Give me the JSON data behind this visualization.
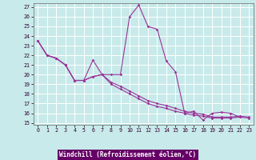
{
  "xlabel": "Windchill (Refroidissement éolien,°C)",
  "background_color": "#c8eaea",
  "grid_color": "#ffffff",
  "line_color": "#993399",
  "xlabel_bg": "#660066",
  "xlabel_fg": "#ffffff",
  "x_values": [
    0,
    1,
    2,
    3,
    4,
    5,
    6,
    7,
    8,
    9,
    10,
    11,
    12,
    13,
    14,
    15,
    16,
    17,
    18,
    19,
    20,
    21,
    22,
    23
  ],
  "series": [
    [
      23.5,
      22.0,
      21.7,
      21.0,
      19.4,
      19.4,
      21.5,
      20.0,
      20.0,
      20.0,
      26.0,
      27.2,
      25.0,
      24.7,
      21.4,
      20.3,
      16.0,
      16.2,
      15.3,
      16.0,
      16.1,
      16.0,
      15.6,
      null
    ],
    [
      23.5,
      22.0,
      21.7,
      21.0,
      19.4,
      19.4,
      19.8,
      20.0,
      19.2,
      18.8,
      18.3,
      17.8,
      17.3,
      17.0,
      16.8,
      16.5,
      16.2,
      16.0,
      15.9,
      15.6,
      15.6,
      15.6,
      15.7,
      15.6
    ],
    [
      23.5,
      22.0,
      21.7,
      21.0,
      19.4,
      19.4,
      19.8,
      20.0,
      19.0,
      18.5,
      18.0,
      17.5,
      17.0,
      16.7,
      16.5,
      16.2,
      16.0,
      15.8,
      15.7,
      15.5,
      15.5,
      15.5,
      15.6,
      15.5
    ]
  ],
  "ylim": [
    15,
    27
  ],
  "yticks": [
    15,
    16,
    17,
    18,
    19,
    20,
    21,
    22,
    23,
    24,
    25,
    26,
    27
  ],
  "xticks": [
    0,
    1,
    2,
    3,
    4,
    5,
    6,
    7,
    8,
    9,
    10,
    11,
    12,
    13,
    14,
    15,
    16,
    17,
    18,
    19,
    20,
    21,
    22,
    23
  ]
}
